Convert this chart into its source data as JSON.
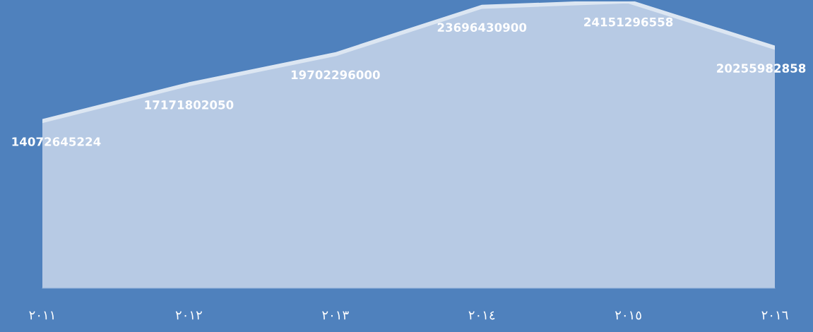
{
  "chart_data": {
    "type": "area",
    "categories": [
      "٢٠١١",
      "٢٠١٢",
      "٢٠١٣",
      "٢٠١٤",
      "٢٠١٥",
      "٢٠١٦"
    ],
    "series": [
      {
        "color": "#c9d7eb",
        "values": [
          14072645224,
          17171802050,
          19702296000,
          23696430900,
          24151296558,
          20255982858
        ]
      }
    ],
    "data_labels": true,
    "grid": false,
    "tick_labels": "x"
  }
}
